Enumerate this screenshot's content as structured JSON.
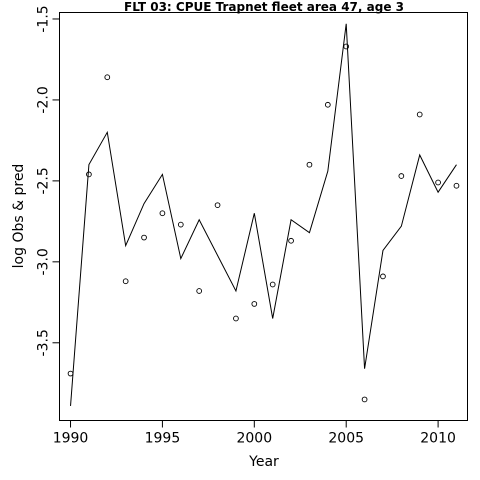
{
  "chart_data": {
    "type": "line",
    "title": "FLT 03: CPUE Trapnet fleet area 47, age 3",
    "xlabel": "Year",
    "ylabel": "log Obs & pred",
    "xlim": [
      1989.4,
      2011.6
    ],
    "ylim": [
      -3.98,
      -1.46
    ],
    "x_ticks": [
      1990,
      1995,
      2000,
      2005,
      2010
    ],
    "y_ticks": [
      -3.5,
      -3.0,
      -2.5,
      -2.0,
      -1.5
    ],
    "y_tick_labels": [
      "-3.5",
      "-3.0",
      "-2.5",
      "-2.0",
      "-1.5"
    ],
    "grid": false,
    "series": [
      {
        "style": "points",
        "x": [
          1990,
          1991,
          1992,
          1993,
          1994,
          1995,
          1996,
          1997,
          1998,
          1999,
          2000,
          2001,
          2002,
          2003,
          2004,
          2005,
          2006,
          2007,
          2008,
          2009,
          2010,
          2011
        ],
        "values": [
          -3.69,
          -2.46,
          -1.86,
          -3.12,
          -2.85,
          -2.7,
          -2.77,
          -3.18,
          -2.65,
          -3.35,
          -3.26,
          -3.14,
          -2.87,
          -2.4,
          -2.03,
          -1.67,
          -3.85,
          -3.09,
          -2.47,
          -2.09,
          -2.51,
          -2.53
        ]
      },
      {
        "style": "line",
        "x": [
          1990,
          1991,
          1992,
          1993,
          1994,
          1995,
          1996,
          1997,
          1998,
          1999,
          2000,
          2001,
          2002,
          2003,
          2004,
          2005,
          2006,
          2007,
          2008,
          2009,
          2010,
          2011
        ],
        "values": [
          -3.89,
          -2.4,
          -2.2,
          -2.9,
          -2.64,
          -2.46,
          -2.98,
          -2.74,
          -2.96,
          -3.18,
          -2.7,
          -3.35,
          -2.74,
          -2.82,
          -2.44,
          -1.53,
          -3.66,
          -2.93,
          -2.78,
          -2.34,
          -2.57,
          -2.4
        ]
      }
    ]
  }
}
